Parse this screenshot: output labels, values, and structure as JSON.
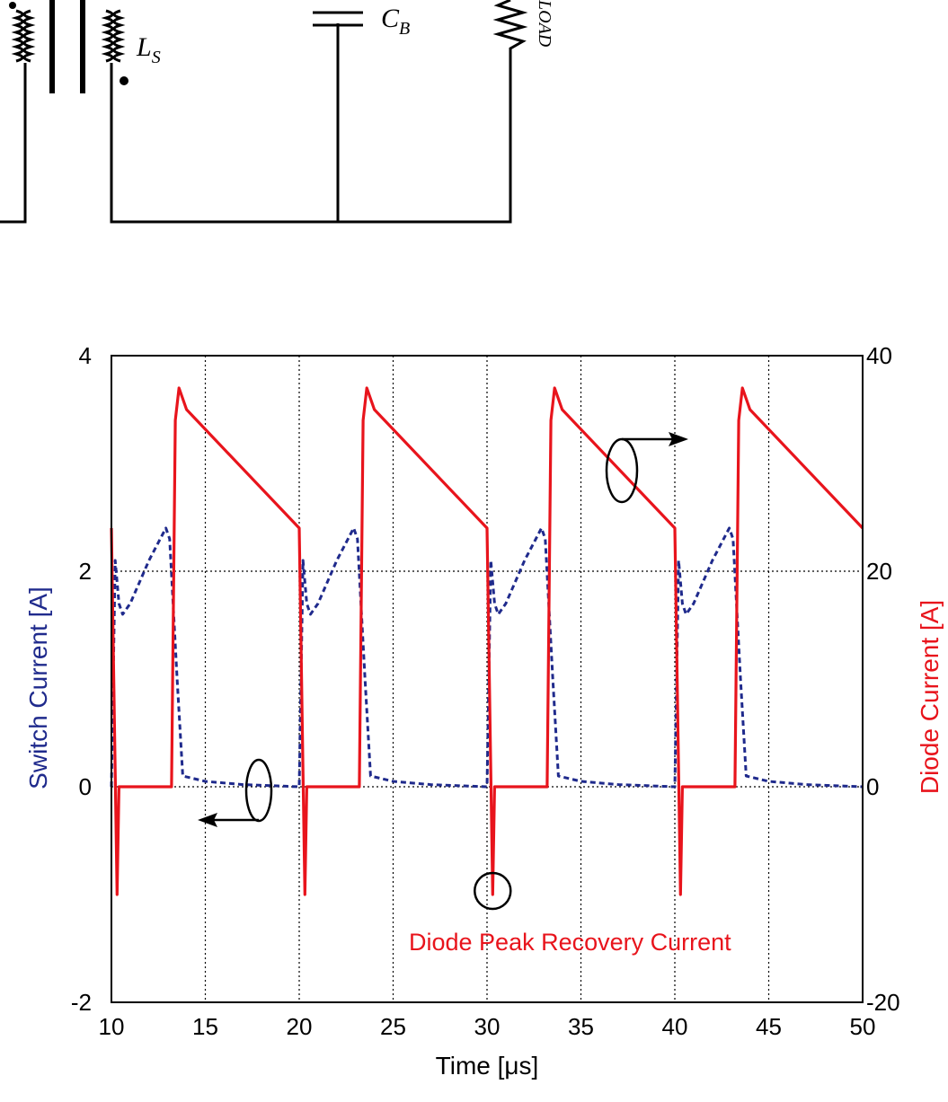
{
  "schematic": {
    "labels": {
      "secondary_inductor": "L",
      "secondary_inductor_sub": "S",
      "capacitor": "C",
      "capacitor_sub": "B",
      "load_resistor_sub": "LOAD"
    }
  },
  "chart_data": {
    "type": "line",
    "title": "",
    "xlabel": "Time [μs]",
    "ylabel_left": "Switch Current [A]",
    "ylabel_right": "Diode Current [A]",
    "xlim": [
      10,
      50
    ],
    "ylim_left": [
      -2,
      4
    ],
    "ylim_right": [
      -20,
      40
    ],
    "x_ticks": [
      "10",
      "15",
      "20",
      "25",
      "30",
      "35",
      "40",
      "45",
      "50"
    ],
    "y_ticks_left": [
      "-2",
      "0",
      "2",
      "4"
    ],
    "y_ticks_right": [
      "-20",
      "0",
      "20",
      "40"
    ],
    "grid": "dotted",
    "period_us": 10,
    "series": [
      {
        "axis": "left",
        "color": "#1f2a8c",
        "style": "dashed",
        "x": [
          10.0,
          10.2,
          10.4,
          10.6,
          11.0,
          12.0,
          12.9,
          13.1,
          13.5,
          13.8,
          15.0,
          17.0,
          20.0,
          20.2,
          20.4,
          20.6,
          21.0,
          22.0,
          22.9,
          23.1,
          23.5,
          23.8,
          25.0,
          27.0,
          30.0,
          30.2,
          30.4,
          30.6,
          31.0,
          32.0,
          32.9,
          33.1,
          33.5,
          33.8,
          35.0,
          37.0,
          40.0,
          40.2,
          40.4,
          40.6,
          41.0,
          42.0,
          42.9,
          43.1,
          43.5,
          43.8,
          45.0,
          47.0,
          50.0
        ],
        "values": [
          0.0,
          2.1,
          1.7,
          1.6,
          1.7,
          2.1,
          2.4,
          2.3,
          1.0,
          0.1,
          0.05,
          0.02,
          0.0,
          2.1,
          1.7,
          1.6,
          1.7,
          2.1,
          2.4,
          2.3,
          1.0,
          0.1,
          0.05,
          0.02,
          0.0,
          2.1,
          1.7,
          1.6,
          1.7,
          2.1,
          2.4,
          2.3,
          1.0,
          0.1,
          0.05,
          0.02,
          0.0,
          2.1,
          1.7,
          1.6,
          1.7,
          2.1,
          2.4,
          2.3,
          1.0,
          0.1,
          0.05,
          0.02,
          0.0
        ]
      },
      {
        "axis": "right",
        "color": "#e8141c",
        "style": "solid",
        "x": [
          10.0,
          10.3,
          10.4,
          10.7,
          12.0,
          13.2,
          13.4,
          13.6,
          14.0,
          20.0,
          20.3,
          20.4,
          20.7,
          22.0,
          23.2,
          23.4,
          23.6,
          24.0,
          30.0,
          30.3,
          30.4,
          30.7,
          32.0,
          33.2,
          33.4,
          33.6,
          34.0,
          40.0,
          40.3,
          40.4,
          40.7,
          42.0,
          43.2,
          43.4,
          43.6,
          44.0,
          50.0
        ],
        "values": [
          24.0,
          -10.0,
          0.0,
          0.0,
          0.0,
          0.0,
          34.0,
          37.0,
          35.0,
          24.0,
          -10.0,
          0.0,
          0.0,
          0.0,
          0.0,
          34.0,
          37.0,
          35.0,
          24.0,
          -10.0,
          0.0,
          0.0,
          0.0,
          0.0,
          34.0,
          37.0,
          35.0,
          24.0,
          -10.0,
          0.0,
          0.0,
          0.0,
          0.0,
          34.0,
          37.0,
          35.0,
          24.0
        ]
      }
    ],
    "annotations": [
      {
        "text": "Diode Peak Recovery Current",
        "x": 30.3,
        "y_right": -10.0,
        "color": "#e8141c"
      }
    ]
  }
}
